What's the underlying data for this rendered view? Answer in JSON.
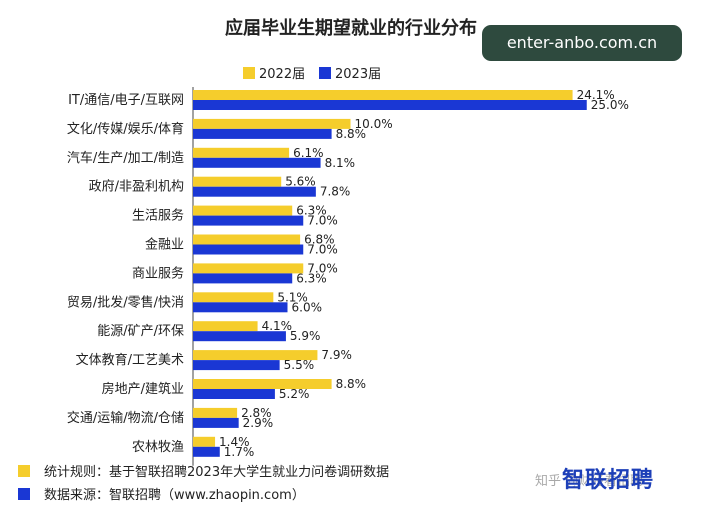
{
  "site_badge": "enter-anbo.com.cn",
  "watermark": "知乎 @财经看招聘",
  "logo_text": "智联招聘",
  "footnotes": [
    {
      "text": "统计规则：基于智联招聘2023年大学生就业力问卷调研数据",
      "color": "#f5cd2c"
    },
    {
      "text": "数据来源：智联招聘（www.zhaopin.com）",
      "color": "#1a37d4"
    }
  ],
  "chart_data": {
    "type": "bar",
    "orientation": "horizontal",
    "title": "应届毕业生期望就业的行业分布",
    "legend_position": "top-center",
    "grid": false,
    "unit": "%",
    "xlim": [
      0,
      25
    ],
    "categories": [
      "IT/通信/电子/互联网",
      "文化/传媒/娱乐/体育",
      "汽车/生产/加工/制造",
      "政府/非盈利机构",
      "生活服务",
      "金融业",
      "商业服务",
      "贸易/批发/零售/快消",
      "能源/矿产/环保",
      "文体教育/工艺美术",
      "房地产/建筑业",
      "交通/运输/物流/仓储",
      "农林牧渔"
    ],
    "series": [
      {
        "name": "2022届",
        "color": "#f5cd2c",
        "values": [
          24.1,
          10.0,
          6.1,
          5.6,
          6.3,
          6.8,
          7.0,
          5.1,
          4.1,
          7.9,
          8.8,
          2.8,
          1.4
        ]
      },
      {
        "name": "2023届",
        "color": "#1a37d4",
        "values": [
          25.0,
          8.8,
          8.1,
          7.8,
          7.0,
          7.0,
          6.3,
          6.0,
          5.9,
          5.5,
          5.2,
          2.9,
          1.7
        ]
      }
    ]
  }
}
